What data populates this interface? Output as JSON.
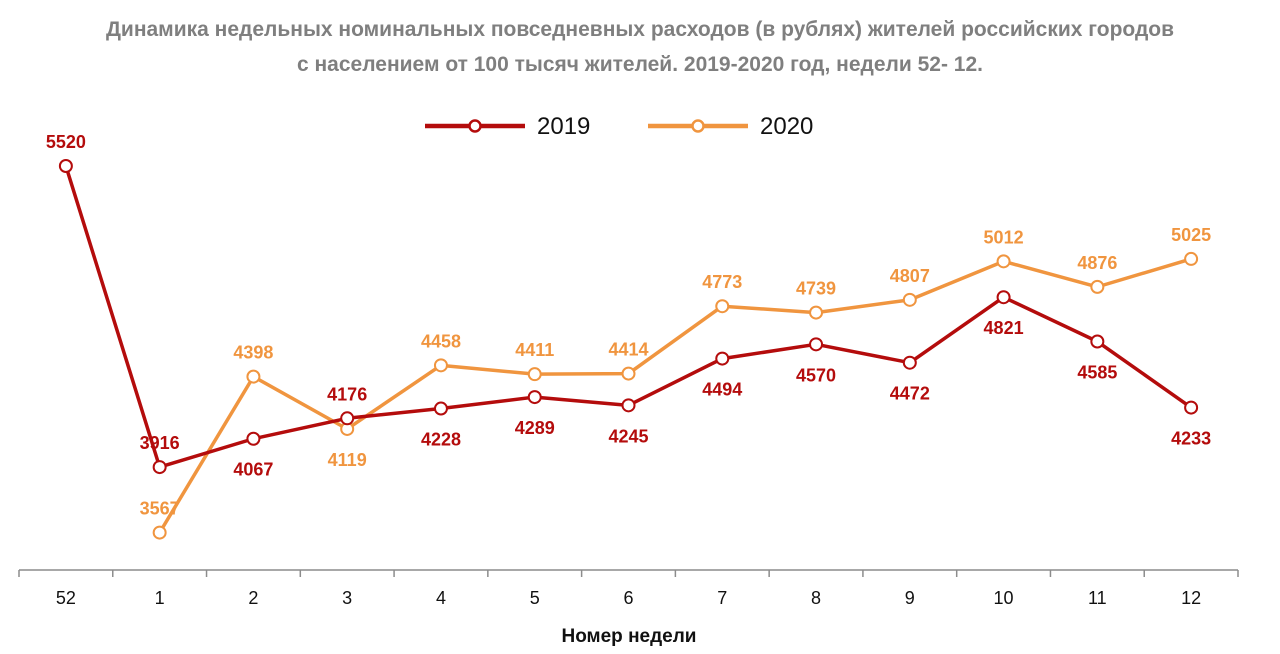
{
  "chart_data": {
    "type": "line",
    "title_line1": "Динамика недельных номинальных повседневных расходов (в рублях) жителей российских городов",
    "title_line2": "с населением от 100 тысяч жителей. 2019-2020 год, недели 52- 12.",
    "xlabel": "Номер недели",
    "ylabel": "",
    "categories": [
      "52",
      "1",
      "2",
      "3",
      "4",
      "5",
      "6",
      "7",
      "8",
      "9",
      "10",
      "11",
      "12"
    ],
    "series": [
      {
        "name": "2019",
        "color": "#b40c0c",
        "values": [
          5520,
          3916,
          4067,
          4176,
          4228,
          4289,
          4245,
          4494,
          4570,
          4472,
          4821,
          4585,
          4233
        ],
        "label_positions": [
          "above",
          "above",
          "below",
          "above",
          "below",
          "below",
          "below",
          "below",
          "below",
          "below",
          "below",
          "below",
          "below"
        ]
      },
      {
        "name": "2020",
        "color": "#f0953f",
        "values": [
          null,
          3567,
          4398,
          4119,
          4458,
          4411,
          4414,
          4773,
          4739,
          4807,
          5012,
          4876,
          5025
        ],
        "label_positions": [
          "none",
          "above",
          "above",
          "below",
          "above",
          "above",
          "above",
          "above",
          "above",
          "above",
          "above",
          "above",
          "above"
        ]
      }
    ],
    "grid": false,
    "legend_position": "top-center"
  }
}
